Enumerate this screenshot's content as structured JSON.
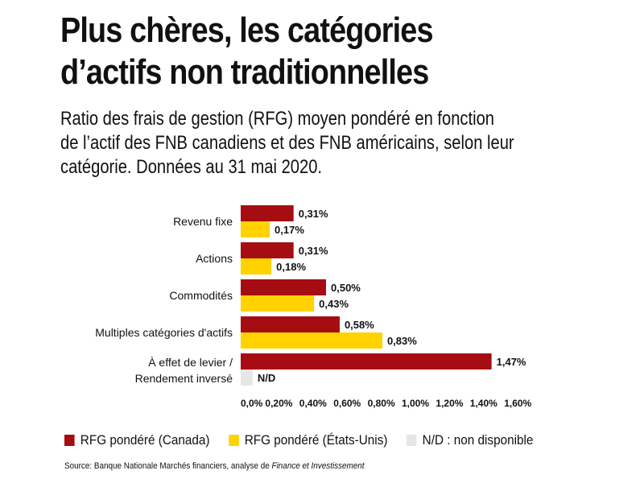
{
  "title_lines": [
    "Plus chères, les catégories",
    "d’actifs non traditionnelles"
  ],
  "subtitle_lines": [
    "Ratio des frais de gestion (RFG) moyen pondéré en fonction",
    "de l’actif des FNB canadiens et des FNB américains, selon leur",
    "catégorie. Données au 31 mai 2020."
  ],
  "chart_data": {
    "type": "bar",
    "orientation": "horizontal",
    "categories": [
      [
        "Revenu fixe"
      ],
      [
        "Actions"
      ],
      [
        "Commodités"
      ],
      [
        "Multiples catégories d'actifs"
      ],
      [
        "À effet de levier /",
        "Rendement inversé"
      ]
    ],
    "series": [
      {
        "name": "RFG pondéré (Canada)",
        "color": "#a50d12",
        "values": [
          0.31,
          0.31,
          0.5,
          0.58,
          1.47
        ],
        "labels": [
          "0,31%",
          "0,31%",
          "0,50%",
          "0,58%",
          "1,47%"
        ]
      },
      {
        "name": "RFG pondéré (États-Unis)",
        "color": "#ffd200",
        "values": [
          0.17,
          0.18,
          0.43,
          0.83,
          null
        ],
        "labels": [
          "0,17%",
          "0,18%",
          "0,43%",
          "0,83%",
          "N/D"
        ]
      }
    ],
    "na_color": "#e6e6e6",
    "na_value": 0.07,
    "xlim": [
      0,
      1.6
    ],
    "xticks": [
      "0,0%",
      "0,20%",
      "0,40%",
      "0,60%",
      "0,80%",
      "1,00%",
      "1,20%",
      "1,40%",
      "1,60%"
    ],
    "grid": false
  },
  "legend": [
    {
      "label": "RFG pondéré (Canada)",
      "color": "#a50d12"
    },
    {
      "label": "RFG pondéré (États-Unis)",
      "color": "#ffd200"
    },
    {
      "label": "N/D : non disponible",
      "color": "#e6e6e6"
    }
  ],
  "source": {
    "prefix": "Source: Banque Nationale Marchés financiers, analyse de ",
    "italic": "Finance et Investissement"
  }
}
